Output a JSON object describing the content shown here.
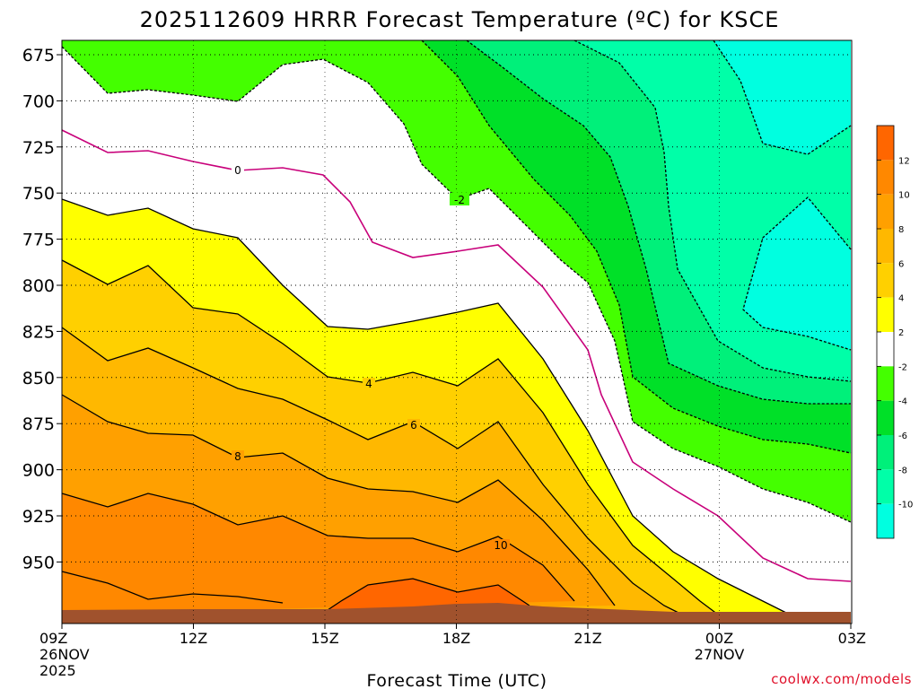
{
  "chart_data": {
    "type": "heatmap",
    "title": "2025112609 HRRR Forecast Temperature (ºC) for KSCE",
    "xlabel": "Forecast Time (UTC)",
    "credit": "coolwx.com/models",
    "y_axis": {
      "inverted": true,
      "ticks": [
        "675",
        "700",
        "725",
        "750",
        "775",
        "800",
        "825",
        "850",
        "875",
        "900",
        "925",
        "950"
      ]
    },
    "x_axis": {
      "ticks": [
        {
          "label": "09Z",
          "sub": [
            "26NOV",
            "2025"
          ]
        },
        {
          "label": "12Z",
          "sub": []
        },
        {
          "label": "15Z",
          "sub": []
        },
        {
          "label": "18Z",
          "sub": []
        },
        {
          "label": "21Z",
          "sub": []
        },
        {
          "label": "00Z",
          "sub": [
            "27NOV"
          ]
        },
        {
          "label": "03Z",
          "sub": []
        }
      ]
    },
    "grid": true,
    "colorbar": {
      "placement": "right",
      "bands": [
        {
          "min": 12,
          "max": 14,
          "color": "#ff6600"
        },
        {
          "min": 10,
          "max": 12,
          "color": "#ff8800"
        },
        {
          "min": 8,
          "max": 10,
          "color": "#ffa000"
        },
        {
          "min": 6,
          "max": 8,
          "color": "#ffb800"
        },
        {
          "min": 4,
          "max": 6,
          "color": "#ffd000"
        },
        {
          "min": 2,
          "max": 4,
          "color": "#ffff00"
        },
        {
          "min": -2,
          "max": 2,
          "color": "#ffffff"
        },
        {
          "min": -4,
          "max": -2,
          "color": "#44ff00"
        },
        {
          "min": -6,
          "max": -4,
          "color": "#00e028"
        },
        {
          "min": -8,
          "max": -6,
          "color": "#00f07a"
        },
        {
          "min": -10,
          "max": -8,
          "color": "#00ffa8"
        },
        {
          "min": -12,
          "max": -10,
          "color": "#00ffe0"
        }
      ],
      "tick_labels": [
        "12",
        "10",
        "8",
        "6",
        "4",
        "2",
        "-2",
        "-4",
        "-6",
        "-8",
        "-10"
      ]
    },
    "contour_labels": [
      "0",
      "-2",
      "4",
      "6",
      "8",
      "10"
    ],
    "ground_color": "#a0522d"
  }
}
